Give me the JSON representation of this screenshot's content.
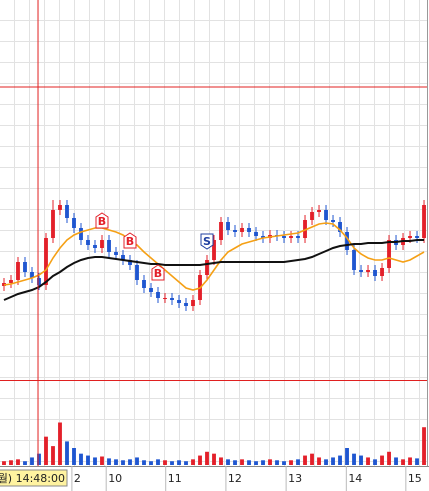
{
  "chart_data": {
    "type": "candlestick",
    "x": [
      0,
      1,
      2,
      3,
      4,
      5,
      6,
      7,
      8,
      9,
      10,
      11,
      12,
      13,
      14,
      15,
      16,
      17,
      18,
      19,
      20,
      21,
      22,
      23,
      24,
      25,
      26,
      27,
      28,
      29,
      30,
      31,
      32,
      33,
      34,
      35,
      36,
      37,
      38,
      39,
      40,
      41,
      42,
      43,
      44,
      45,
      46,
      47,
      48,
      49,
      50,
      51,
      52,
      53,
      54,
      55,
      56,
      57,
      58,
      59,
      60
    ],
    "open": [
      114,
      117,
      120,
      138,
      128,
      122,
      115,
      162,
      190,
      195,
      182,
      172,
      160,
      155,
      152,
      160,
      148,
      145,
      140,
      135,
      120,
      112,
      108,
      102,
      102,
      100,
      97,
      94,
      100,
      125,
      140,
      160,
      178,
      170,
      168,
      172,
      168,
      164,
      162,
      165,
      164,
      162,
      164,
      162,
      180,
      188,
      190,
      180,
      178,
      168,
      150,
      130,
      128,
      130,
      124,
      132,
      160,
      155,
      162,
      164,
      162
    ],
    "high": [
      122,
      125,
      143,
      143,
      133,
      127,
      167,
      200,
      200,
      200,
      187,
      177,
      165,
      160,
      165,
      165,
      153,
      150,
      145,
      140,
      125,
      117,
      113,
      107,
      107,
      105,
      102,
      105,
      130,
      145,
      165,
      183,
      183,
      175,
      177,
      177,
      173,
      169,
      170,
      170,
      169,
      169,
      169,
      185,
      193,
      195,
      195,
      185,
      183,
      173,
      155,
      135,
      135,
      135,
      137,
      165,
      165,
      167,
      169,
      169,
      200
    ],
    "low": [
      109,
      112,
      115,
      123,
      117,
      110,
      110,
      157,
      185,
      177,
      167,
      155,
      150,
      147,
      147,
      143,
      140,
      135,
      130,
      115,
      107,
      103,
      97,
      97,
      95,
      92,
      89,
      89,
      95,
      120,
      135,
      155,
      165,
      163,
      163,
      163,
      159,
      157,
      157,
      159,
      157,
      157,
      157,
      157,
      175,
      183,
      175,
      173,
      163,
      145,
      125,
      123,
      123,
      119,
      119,
      127,
      150,
      150,
      157,
      157,
      157
    ],
    "close": [
      117,
      120,
      138,
      128,
      122,
      115,
      162,
      190,
      195,
      182,
      172,
      160,
      155,
      152,
      160,
      148,
      145,
      140,
      135,
      120,
      112,
      108,
      102,
      102,
      100,
      97,
      94,
      100,
      125,
      140,
      160,
      178,
      170,
      168,
      172,
      168,
      164,
      162,
      165,
      164,
      162,
      164,
      162,
      180,
      188,
      190,
      180,
      178,
      168,
      150,
      130,
      128,
      130,
      124,
      132,
      160,
      155,
      162,
      164,
      162,
      195
    ],
    "up_color": "#e3202a",
    "down_color": "#1f56d0",
    "xlim": [
      -0.57,
      60.71
    ],
    "ylim": [
      20,
      400
    ],
    "xticks": [
      {
        "value": 9.7,
        "label": "2"
      },
      {
        "value": 14.6,
        "label": "10"
      },
      {
        "value": 23.1,
        "label": "11"
      },
      {
        "value": 31.7,
        "label": "12"
      },
      {
        "value": 40.3,
        "label": "13"
      },
      {
        "value": 48.9,
        "label": "14"
      },
      {
        "value": 57.4,
        "label": "15"
      }
    ],
    "series": [
      {
        "color": "#f5a015",
        "values": [
          115,
          116,
          118,
          120,
          122,
          125,
          130,
          142,
          152,
          160,
          165,
          168,
          170,
          172,
          172,
          170,
          168,
          165,
          160,
          155,
          148,
          142,
          136,
          130,
          124,
          118,
          112,
          110,
          112,
          120,
          130,
          140,
          148,
          152,
          156,
          158,
          160,
          162,
          163,
          164,
          165,
          166,
          167,
          170,
          173,
          176,
          177,
          176,
          170,
          162,
          152,
          146,
          142,
          140,
          140,
          142,
          140,
          138,
          140,
          144,
          148
        ]
      },
      {
        "color": "#111111",
        "values": [
          100,
          103,
          106,
          108,
          110,
          113,
          118,
          124,
          128,
          133,
          137,
          140,
          142,
          143,
          143,
          142,
          141,
          140,
          139,
          138,
          137,
          136,
          136,
          135,
          135,
          135,
          135,
          135,
          135,
          136,
          137,
          138,
          138,
          138,
          138,
          138,
          138,
          138,
          138,
          138,
          138,
          139,
          140,
          141,
          143,
          146,
          149,
          152,
          154,
          155,
          156,
          156,
          157,
          157,
          157,
          158,
          158,
          159,
          159,
          160,
          160
        ]
      }
    ],
    "volume": {
      "ylim": [
        0,
        90
      ],
      "values": [
        4,
        5,
        6,
        4,
        8,
        12,
        30,
        20,
        45,
        25,
        18,
        12,
        10,
        8,
        9,
        7,
        6,
        5,
        6,
        8,
        5,
        4,
        6,
        5,
        4,
        5,
        4,
        6,
        10,
        14,
        12,
        8,
        6,
        5,
        6,
        5,
        4,
        5,
        6,
        5,
        4,
        5,
        6,
        10,
        12,
        8,
        6,
        8,
        10,
        18,
        12,
        10,
        8,
        6,
        10,
        14,
        8,
        6,
        8,
        7,
        40
      ]
    },
    "signals": [
      {
        "label": "B",
        "x": 14,
        "color": "#e3202a"
      },
      {
        "label": "B",
        "x": 18,
        "color": "#e3202a"
      },
      {
        "label": "B",
        "x": 22,
        "color": "#e3202a"
      },
      {
        "label": "S",
        "x": 29,
        "color": "#1f3fa0"
      }
    ],
    "crosshair": {
      "x": 4.86,
      "y": 313,
      "label": "월) 14:48:00",
      "color": "#e02020"
    }
  }
}
